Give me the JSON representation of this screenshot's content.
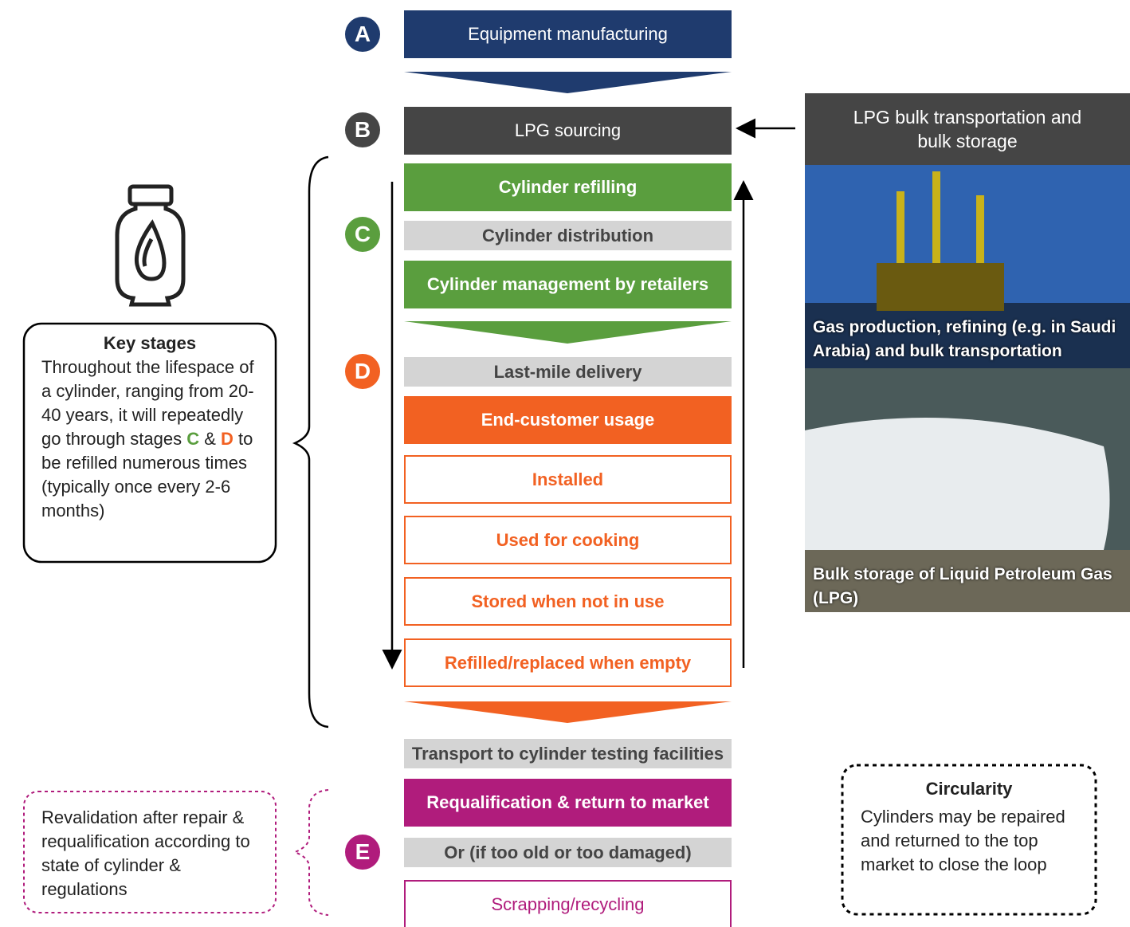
{
  "badges": [
    "A",
    "B",
    "C",
    "D",
    "E"
  ],
  "steps": [
    "Equipment manufacturing",
    "LPG sourcing",
    "Cylinder refilling",
    "Cylinder distribution",
    "Cylinder management by retailers",
    "Last-mile delivery",
    "End-customer usage",
    "Installed",
    "Used for cooking",
    "Stored when not in use",
    "Refilled/replaced when empty",
    "Transport to cylinder testing facilities",
    "Requalification & return to market",
    "Or (if too old or too damaged)",
    "Scrapping/recycling"
  ],
  "bulk": {
    "title": "LPG bulk transportation and bulk storage",
    "photos": [
      "Gas production, refining (e.g. in Saudi Arabia) and bulk transportation",
      "Bulk storage of Liquid Petroleum Gas (LPG)"
    ]
  },
  "key_stages": {
    "title": "Key stages",
    "parts": [
      "Throughout the lifespace of a cylinder, ranging from 20-40 years, it will repeatedly go through stages ",
      "C",
      " & ",
      "D",
      " to be refilled numerous times (typically once every 2-6 months)"
    ]
  },
  "revalidation": "Revalidation after repair & requalification according to state of cylinder & regulations",
  "circularity": {
    "title": "Circularity",
    "text": "Cylinders may be repaired and returned to the top market to close the loop"
  }
}
